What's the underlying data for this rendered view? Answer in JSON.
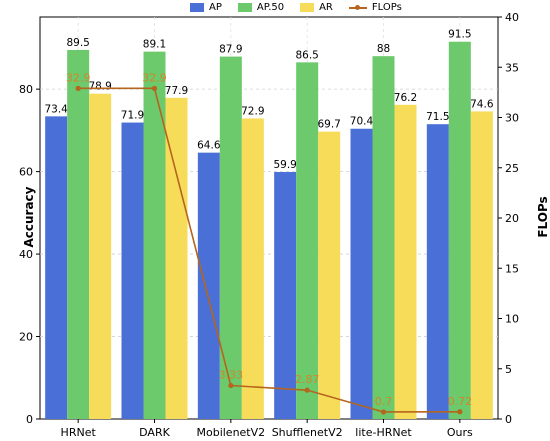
{
  "chart_data": {
    "type": "bar",
    "title": "",
    "categories": [
      "HRNet",
      "DARK",
      "MobilenetV2",
      "ShufflenetV2",
      "lite-HRNet",
      "Ours"
    ],
    "series": [
      {
        "name": "AP",
        "values": [
          73.4,
          71.9,
          64.6,
          59.9,
          70.4,
          71.5
        ],
        "color": "#4a6fd6"
      },
      {
        "name": "AP.50",
        "values": [
          89.5,
          89.1,
          87.9,
          86.5,
          88,
          91.5
        ],
        "color": "#6cc96c"
      },
      {
        "name": "AR",
        "values": [
          78.9,
          77.9,
          72.9,
          69.7,
          76.2,
          74.6
        ],
        "color": "#f7dc5a"
      }
    ],
    "line_series": {
      "name": "FLOPs",
      "values": [
        32.9,
        32.9,
        3.33,
        2.87,
        0.7,
        0.72
      ],
      "labels": [
        "32.9",
        "32.9",
        "3.33",
        "2.87",
        "0.7",
        "0.72"
      ],
      "color": "#b5651d",
      "axis": "right"
    },
    "ylabel": "Accuracy",
    "ylabel_right": "FLOPs",
    "ylim": [
      0,
      97.5
    ],
    "ylim_right": [
      0,
      40
    ],
    "yticks": [
      0,
      20,
      40,
      60,
      80
    ],
    "yticks_right": [
      0,
      5,
      10,
      15,
      20,
      25,
      30,
      35,
      40
    ],
    "legend_position": "top-center",
    "grid": true
  },
  "legend": {
    "ap": "AP",
    "ap50": "AP.50",
    "ar": "AR",
    "flops": "FLOPs"
  }
}
